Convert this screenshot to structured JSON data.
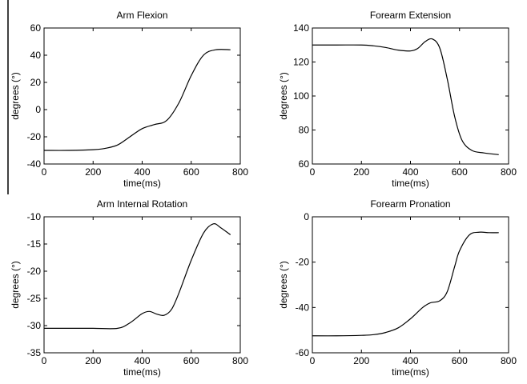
{
  "chart_data": [
    {
      "type": "line",
      "title": "Arm Flexion",
      "xlabel": "time(ms)",
      "ylabel": "degrees (°)",
      "xlim": [
        0,
        800
      ],
      "ylim": [
        -40,
        60
      ],
      "xticks": [
        0,
        200,
        400,
        600,
        800
      ],
      "yticks": [
        -40,
        -20,
        0,
        20,
        40,
        60
      ],
      "grid": false,
      "series": [
        {
          "x": [
            0,
            100,
            200,
            250,
            300,
            350,
            400,
            450,
            500,
            550,
            600,
            650,
            700,
            760
          ],
          "y": [
            -30,
            -30,
            -29.5,
            -28.5,
            -26,
            -20,
            -14,
            -11,
            -8,
            5,
            25,
            40,
            44,
            44
          ]
        }
      ]
    },
    {
      "type": "line",
      "title": "Forearm Extension",
      "xlabel": "time(ms)",
      "ylabel": "degrees (°)",
      "xlim": [
        0,
        800
      ],
      "ylim": [
        60,
        140
      ],
      "xticks": [
        0,
        200,
        400,
        600,
        800
      ],
      "yticks": [
        60,
        80,
        100,
        120,
        140
      ],
      "grid": false,
      "series": [
        {
          "x": [
            0,
            100,
            200,
            250,
            300,
            350,
            400,
            430,
            460,
            490,
            520,
            550,
            580,
            610,
            650,
            700,
            760
          ],
          "y": [
            130,
            130,
            130,
            129.5,
            128.5,
            127,
            126.5,
            128,
            132,
            133.5,
            128,
            110,
            88,
            74,
            68,
            66.5,
            65.5
          ]
        }
      ]
    },
    {
      "type": "line",
      "title": "Arm Internal Rotation",
      "xlabel": "time(ms)",
      "ylabel": "degrees (°)",
      "xlim": [
        0,
        800
      ],
      "ylim": [
        -35,
        -10
      ],
      "xticks": [
        0,
        200,
        400,
        600,
        800
      ],
      "yticks": [
        -35,
        -30,
        -25,
        -20,
        -15,
        -10
      ],
      "grid": false,
      "series": [
        {
          "x": [
            0,
            100,
            200,
            300,
            350,
            400,
            430,
            460,
            490,
            520,
            550,
            600,
            650,
            690,
            720,
            760
          ],
          "y": [
            -30.5,
            -30.5,
            -30.5,
            -30.5,
            -29.5,
            -27.8,
            -27.4,
            -27.9,
            -28.1,
            -27,
            -24,
            -18,
            -13,
            -11.3,
            -12,
            -13.3
          ]
        }
      ]
    },
    {
      "type": "line",
      "title": "Forearm Pronation",
      "xlabel": "time(ms)",
      "ylabel": "degrees (°)",
      "xlim": [
        0,
        800
      ],
      "ylim": [
        -60,
        0
      ],
      "xticks": [
        0,
        200,
        400,
        600,
        800
      ],
      "yticks": [
        -60,
        -40,
        -20,
        0
      ],
      "grid": false,
      "series": [
        {
          "x": [
            0,
            100,
            200,
            250,
            300,
            350,
            400,
            450,
            480,
            520,
            550,
            580,
            600,
            640,
            680,
            720,
            760
          ],
          "y": [
            -52.5,
            -52.5,
            -52.3,
            -52,
            -51,
            -49,
            -45,
            -40,
            -38,
            -37,
            -33,
            -22,
            -15,
            -8,
            -6.8,
            -7,
            -7
          ]
        }
      ]
    }
  ]
}
